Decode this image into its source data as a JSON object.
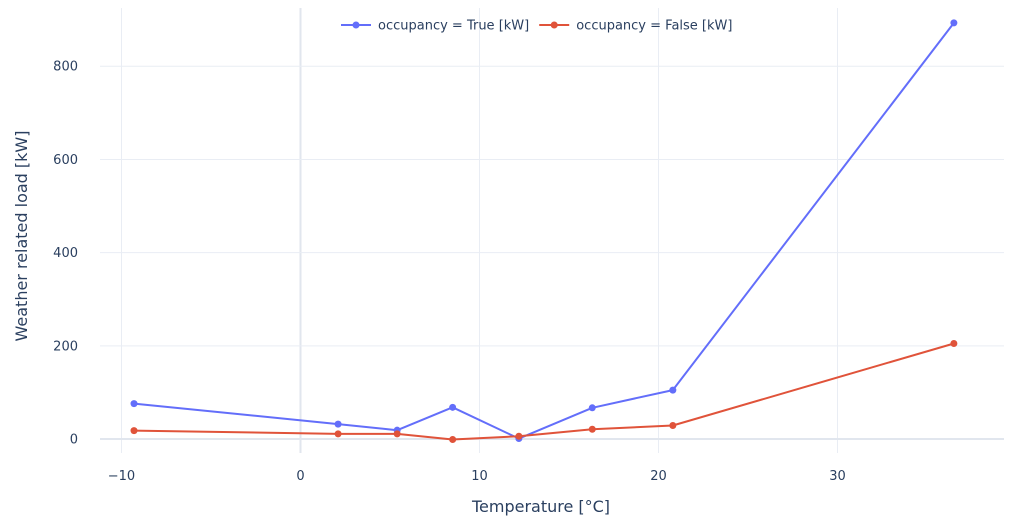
{
  "chart_data": {
    "type": "line",
    "xlabel": "Temperature [°C]",
    "ylabel": "Weather related load [kW]",
    "xlim": [
      -11.2,
      39.3
    ],
    "ylim": [
      -30,
      925
    ],
    "xticks": [
      -10,
      0,
      10,
      20,
      30
    ],
    "xtick_labels": [
      "−10",
      "0",
      "10",
      "20",
      "30"
    ],
    "yticks": [
      0,
      200,
      400,
      600,
      800
    ],
    "ytick_labels": [
      "0",
      "200",
      "400",
      "600",
      "800"
    ],
    "grid": true,
    "legend_position": "top-center",
    "series": [
      {
        "name": "occupancy = True [kW]",
        "color": "#636efa",
        "x": [
          -9.3,
          2.1,
          5.4,
          8.5,
          12.2,
          16.3,
          20.8,
          36.5
        ],
        "y": [
          76,
          32,
          19,
          68,
          1,
          67,
          105,
          893
        ]
      },
      {
        "name": "occupancy = False [kW]",
        "color": "#e0533a",
        "x": [
          -9.3,
          2.1,
          5.4,
          8.5,
          12.2,
          16.3,
          20.8,
          36.5
        ],
        "y": [
          18,
          11,
          11,
          -1,
          6,
          21,
          29,
          205
        ]
      }
    ]
  }
}
